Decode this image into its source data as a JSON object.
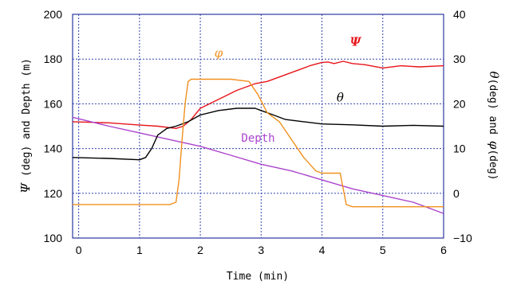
{
  "chart_data": {
    "type": "line",
    "x_axis": {
      "label": "Time (min)",
      "range": [
        -0.1,
        6
      ],
      "ticks": [
        0,
        1,
        2,
        3,
        4,
        5,
        6
      ]
    },
    "y_left_axis": {
      "label_symbol": "Ψ",
      "label_text": " (deg) and Depth (m)",
      "range": [
        100,
        200
      ],
      "ticks": [
        100,
        120,
        140,
        160,
        180,
        200
      ]
    },
    "y_right_axis": {
      "label_symbol_1": "θ",
      "label_text_1": "(deg) and ",
      "label_symbol_2": "φ",
      "label_text_2": "(deg)",
      "range": [
        -10,
        40
      ],
      "ticks": [
        -10,
        0,
        10,
        20,
        30,
        40
      ],
      "tick_labels": [
        "−10",
        "0",
        "10",
        "20",
        "30",
        "40"
      ]
    },
    "grid": true,
    "series": [
      {
        "name": "Ψ",
        "axis": "left",
        "color": "#e8141a",
        "label_at": [
          4.55,
          186
        ],
        "x": [
          -0.1,
          0.5,
          1.0,
          1.3,
          1.6,
          1.72,
          1.85,
          2.0,
          2.3,
          2.6,
          2.9,
          3.1,
          3.3,
          3.6,
          3.8,
          4.0,
          4.1,
          4.2,
          4.35,
          4.5,
          4.7,
          5.0,
          5.3,
          5.6,
          6.0
        ],
        "y": [
          152,
          151.5,
          150.5,
          150,
          149,
          150,
          153,
          158,
          162,
          166,
          169,
          170,
          172,
          175,
          177,
          178.5,
          178.7,
          178,
          179,
          178,
          177.5,
          176,
          177,
          176.5,
          177
        ]
      },
      {
        "name": "Depth",
        "axis": "left",
        "color": "#aa44cc",
        "label_at": [
          2.95,
          143
        ],
        "x": [
          -0.1,
          0.5,
          1.0,
          1.5,
          2.0,
          2.5,
          3.0,
          3.5,
          4.0,
          4.5,
          5.0,
          5.5,
          6.0
        ],
        "y": [
          154,
          150,
          147,
          144,
          141,
          137,
          133,
          130,
          126,
          122,
          119,
          116,
          111
        ]
      },
      {
        "name": "θ",
        "axis": "right",
        "color": "#000000",
        "label_at": [
          4.3,
          20.5
        ],
        "x": [
          -0.1,
          0.5,
          1.0,
          1.1,
          1.2,
          1.3,
          1.45,
          1.6,
          1.8,
          2.0,
          2.3,
          2.6,
          2.9,
          3.0,
          3.2,
          3.4,
          3.7,
          4.0,
          4.5,
          5.0,
          5.5,
          6.0
        ],
        "y": [
          8,
          7.8,
          7.5,
          8,
          10,
          13,
          14.5,
          15,
          16,
          17.5,
          18.5,
          19,
          19,
          18.5,
          17.5,
          16.5,
          16,
          15.5,
          15.3,
          15,
          15.2,
          15
        ]
      },
      {
        "name": "φ",
        "axis": "right",
        "color": "#f0901e",
        "label_at": [
          2.3,
          30.5
        ],
        "x": [
          -0.1,
          0.5,
          1.0,
          1.5,
          1.6,
          1.65,
          1.7,
          1.75,
          1.8,
          1.85,
          2.2,
          2.5,
          2.8,
          2.95,
          3.1,
          3.3,
          3.5,
          3.7,
          3.9,
          4.0,
          4.3,
          4.35,
          4.4,
          4.5,
          5.0,
          5.5,
          6.0
        ],
        "y": [
          -2.5,
          -2.5,
          -2.5,
          -2.5,
          -2,
          3,
          12,
          20,
          25,
          25.5,
          25.5,
          25.5,
          25,
          22,
          18,
          16,
          12,
          8,
          5,
          4.5,
          4.5,
          1,
          -2.5,
          -3,
          -3,
          -3,
          -3
        ]
      }
    ]
  }
}
